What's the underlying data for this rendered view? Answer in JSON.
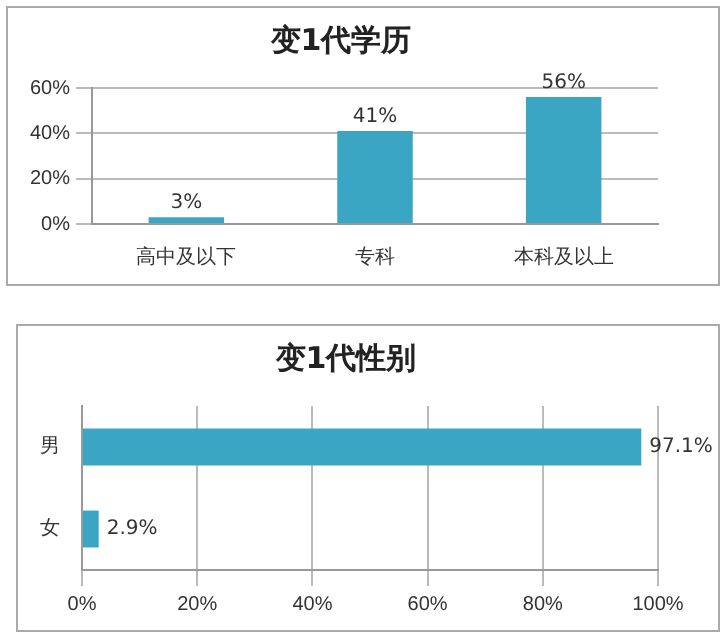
{
  "chart_data": [
    {
      "type": "bar",
      "title": "变1代学历",
      "categories": [
        "高中及以下",
        "专科",
        "本科及以上"
      ],
      "values": [
        3,
        41,
        56
      ],
      "value_labels": [
        "3%",
        "41%",
        "56%"
      ],
      "color": "#3aa6c4",
      "ylim": [
        0,
        60
      ],
      "yticks": [
        {
          "value": 0,
          "label": "0%"
        },
        {
          "value": 20,
          "label": "20%"
        },
        {
          "value": 40,
          "label": "40%"
        },
        {
          "value": 60,
          "label": "60%"
        }
      ],
      "grid": "y",
      "legend": false
    },
    {
      "type": "bar",
      "orientation": "horizontal",
      "title": "变1代性别",
      "categories": [
        "男",
        "女"
      ],
      "values": [
        97.1,
        2.9
      ],
      "value_labels": [
        "97.1%",
        "2.9%"
      ],
      "color": "#3aa6c4",
      "xlim": [
        0,
        100
      ],
      "xticks": [
        {
          "value": 0,
          "label": "0%"
        },
        {
          "value": 20,
          "label": "20%"
        },
        {
          "value": 40,
          "label": "40%"
        },
        {
          "value": 60,
          "label": "60%"
        },
        {
          "value": 80,
          "label": "80%"
        },
        {
          "value": 100,
          "label": "100%"
        }
      ],
      "grid": "x",
      "legend": false
    }
  ]
}
